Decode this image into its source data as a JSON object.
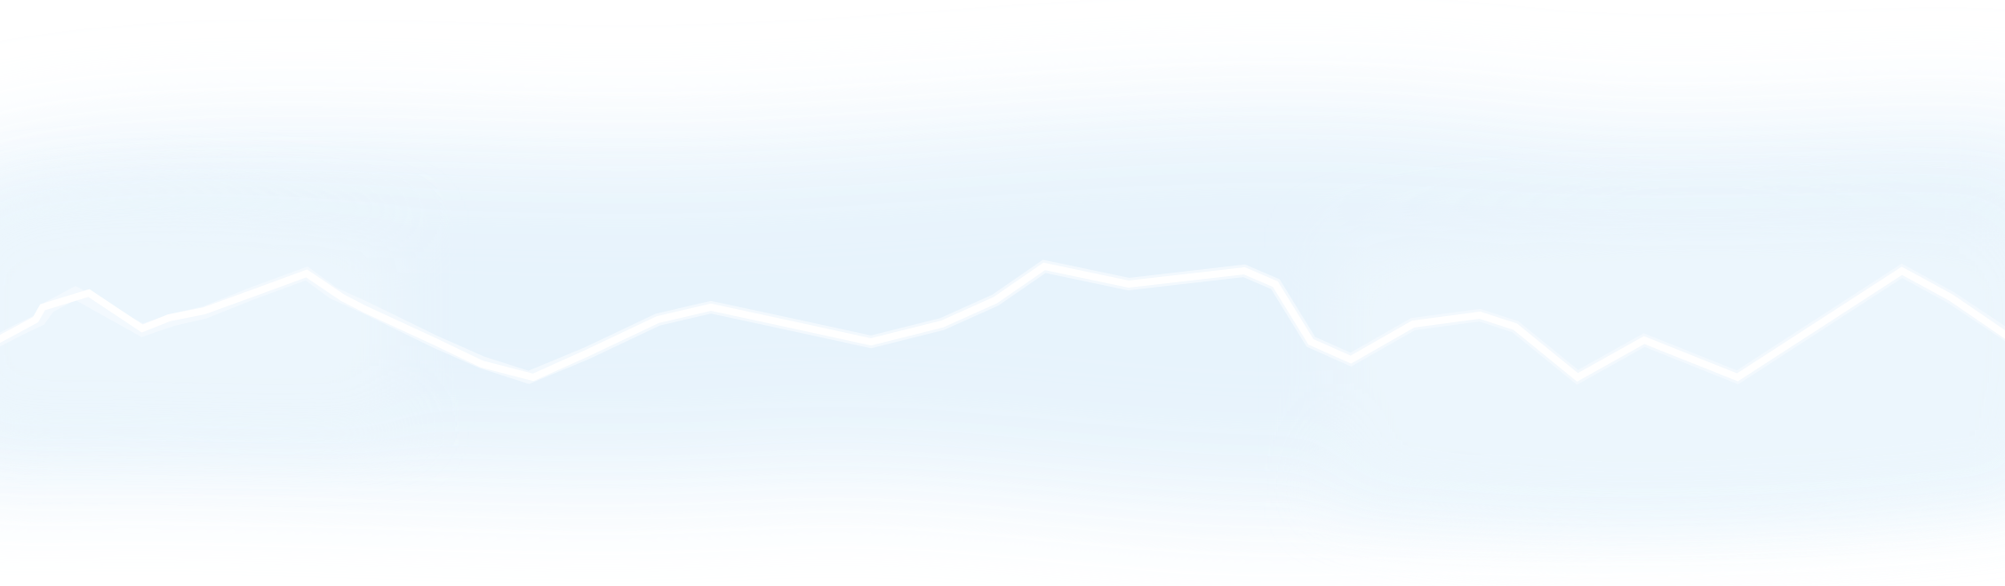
{
  "colors": {
    "background": "#ffffff",
    "mist": "#e8f4fc",
    "mist_core": "#eaf5fd",
    "line": "#ffffff"
  },
  "icons": [
    "line-wave-decoration"
  ]
}
